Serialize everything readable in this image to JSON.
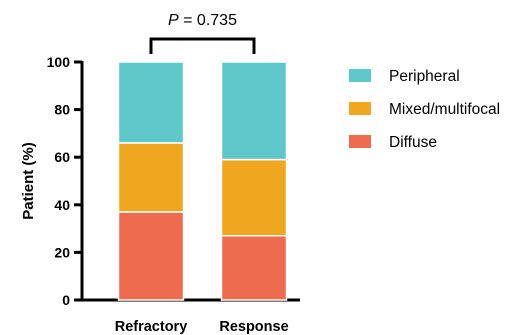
{
  "chart_data": {
    "type": "bar",
    "stacked": true,
    "categories": [
      "Refractory",
      "Response"
    ],
    "series": [
      {
        "name": "Diffuse",
        "values": [
          37,
          27
        ],
        "color": "#ee6b4f"
      },
      {
        "name": "Mixed/multifocal",
        "values": [
          29,
          32
        ],
        "color": "#eea71f"
      },
      {
        "name": "Peripheral",
        "values": [
          34,
          41
        ],
        "color": "#5ec7c9"
      }
    ],
    "ylabel": "Patient (%)",
    "ylim": [
      0,
      100
    ],
    "yticks": [
      0,
      20,
      40,
      60,
      80,
      100
    ],
    "legend_position": "right",
    "legend_order": [
      "Peripheral",
      "Mixed/multifocal",
      "Diffuse"
    ],
    "annotation": {
      "prefix": "P",
      "text": " = 0.735"
    }
  }
}
